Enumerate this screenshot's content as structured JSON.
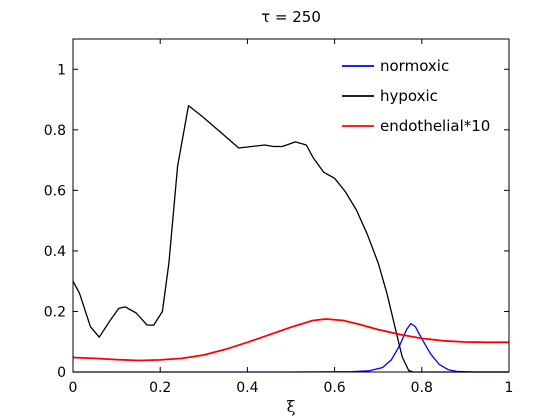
{
  "chart_data": {
    "type": "line",
    "title": "τ = 250",
    "xlabel": "ξ",
    "ylabel": "",
    "xlim": [
      0,
      1
    ],
    "ylim": [
      0,
      1.1
    ],
    "xticks": [
      "0",
      "0.2",
      "0.4",
      "0.6",
      "0.8",
      "1"
    ],
    "xtick_values": [
      0,
      0.2,
      0.4,
      0.6,
      0.8,
      1
    ],
    "yticks": [
      "0",
      "0.2",
      "0.4",
      "0.6",
      "0.8",
      "1"
    ],
    "ytick_values": [
      0,
      0.2,
      0.4,
      0.6,
      0.8,
      1
    ],
    "grid": false,
    "legend_position": "top-right",
    "series": [
      {
        "name": "normoxic",
        "color": "#0000ff",
        "points": [
          [
            0,
            0
          ],
          [
            0.5,
            0
          ],
          [
            0.64,
            0.001
          ],
          [
            0.68,
            0.004
          ],
          [
            0.71,
            0.015
          ],
          [
            0.73,
            0.04
          ],
          [
            0.75,
            0.09
          ],
          [
            0.765,
            0.14
          ],
          [
            0.775,
            0.16
          ],
          [
            0.785,
            0.15
          ],
          [
            0.8,
            0.11
          ],
          [
            0.82,
            0.06
          ],
          [
            0.84,
            0.025
          ],
          [
            0.86,
            0.008
          ],
          [
            0.88,
            0.002
          ],
          [
            0.92,
            0
          ],
          [
            1,
            0
          ]
        ]
      },
      {
        "name": "hypoxic",
        "color": "#000000",
        "points": [
          [
            0,
            0.3
          ],
          [
            0.015,
            0.26
          ],
          [
            0.04,
            0.15
          ],
          [
            0.06,
            0.115
          ],
          [
            0.085,
            0.17
          ],
          [
            0.105,
            0.21
          ],
          [
            0.12,
            0.215
          ],
          [
            0.145,
            0.195
          ],
          [
            0.17,
            0.155
          ],
          [
            0.185,
            0.155
          ],
          [
            0.205,
            0.2
          ],
          [
            0.22,
            0.36
          ],
          [
            0.24,
            0.68
          ],
          [
            0.265,
            0.88
          ],
          [
            0.3,
            0.84
          ],
          [
            0.34,
            0.79
          ],
          [
            0.38,
            0.74
          ],
          [
            0.41,
            0.745
          ],
          [
            0.44,
            0.75
          ],
          [
            0.46,
            0.745
          ],
          [
            0.48,
            0.745
          ],
          [
            0.51,
            0.76
          ],
          [
            0.535,
            0.75
          ],
          [
            0.55,
            0.71
          ],
          [
            0.575,
            0.66
          ],
          [
            0.6,
            0.64
          ],
          [
            0.625,
            0.595
          ],
          [
            0.65,
            0.535
          ],
          [
            0.675,
            0.455
          ],
          [
            0.7,
            0.36
          ],
          [
            0.72,
            0.26
          ],
          [
            0.74,
            0.14
          ],
          [
            0.755,
            0.05
          ],
          [
            0.77,
            0.005
          ],
          [
            0.78,
            0
          ],
          [
            1,
            0
          ]
        ]
      },
      {
        "name": "endothelial*10",
        "color": "#ff0000",
        "points": [
          [
            0,
            0.048
          ],
          [
            0.05,
            0.045
          ],
          [
            0.1,
            0.041
          ],
          [
            0.15,
            0.038
          ],
          [
            0.2,
            0.04
          ],
          [
            0.25,
            0.045
          ],
          [
            0.3,
            0.056
          ],
          [
            0.35,
            0.075
          ],
          [
            0.4,
            0.098
          ],
          [
            0.45,
            0.123
          ],
          [
            0.5,
            0.148
          ],
          [
            0.55,
            0.17
          ],
          [
            0.58,
            0.175
          ],
          [
            0.62,
            0.17
          ],
          [
            0.66,
            0.156
          ],
          [
            0.7,
            0.14
          ],
          [
            0.75,
            0.124
          ],
          [
            0.8,
            0.111
          ],
          [
            0.85,
            0.103
          ],
          [
            0.9,
            0.099
          ],
          [
            0.95,
            0.098
          ],
          [
            1,
            0.098
          ]
        ]
      }
    ]
  }
}
